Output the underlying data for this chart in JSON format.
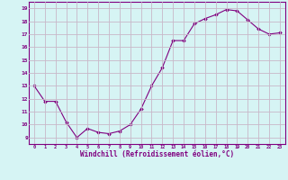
{
  "x": [
    0,
    1,
    2,
    3,
    4,
    5,
    6,
    7,
    8,
    9,
    10,
    11,
    12,
    13,
    14,
    15,
    16,
    17,
    18,
    19,
    20,
    21,
    22,
    23
  ],
  "y": [
    13,
    11.8,
    11.8,
    10.2,
    9.0,
    9.7,
    9.4,
    9.3,
    9.5,
    10.0,
    11.2,
    13.0,
    14.4,
    16.5,
    16.5,
    17.8,
    18.2,
    18.5,
    18.9,
    18.8,
    18.1,
    17.4,
    17.0,
    17.1
  ],
  "line_color": "#800080",
  "marker": "D",
  "markersize": 1.8,
  "linewidth": 0.8,
  "xlabel": "Windchill (Refroidissement éolien,°C)",
  "xlabel_fontsize": 5.5,
  "xtick_labels": [
    "0",
    "1",
    "2",
    "3",
    "4",
    "5",
    "6",
    "7",
    "8",
    "9",
    "10",
    "11",
    "12",
    "13",
    "14",
    "15",
    "16",
    "17",
    "18",
    "19",
    "20",
    "21",
    "22",
    "23"
  ],
  "ytick_labels": [
    "9",
    "10",
    "11",
    "12",
    "13",
    "14",
    "15",
    "16",
    "17",
    "18",
    "19"
  ],
  "yticks": [
    9,
    10,
    11,
    12,
    13,
    14,
    15,
    16,
    17,
    18,
    19
  ],
  "ylim": [
    8.5,
    19.5
  ],
  "xlim": [
    -0.5,
    23.5
  ],
  "background_color": "#d6f4f4",
  "grid_color": "#c8b8c8",
  "tick_color": "#800080",
  "label_color": "#800080",
  "spine_color": "#800080"
}
